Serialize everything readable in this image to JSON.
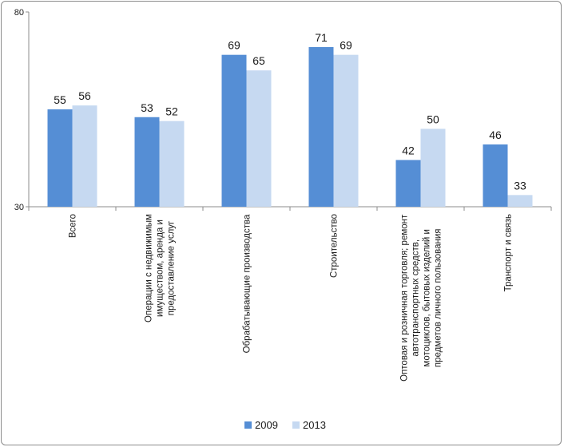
{
  "chart_data": {
    "type": "bar",
    "title": "",
    "xlabel": "",
    "ylabel": "",
    "ylim": [
      30,
      80
    ],
    "yticks": [
      30,
      80
    ],
    "grid": false,
    "legend_position": "bottom",
    "categories": [
      [
        "Всего"
      ],
      [
        "Операции с недвижимым",
        "имуществом, аренда и",
        "предоставление услуг"
      ],
      [
        "Обрабатывающие  производства"
      ],
      [
        "Строительство"
      ],
      [
        "Оптовая и розничная торговля; ремонт",
        "автотранспортных средств,",
        "мотоциклов, бытовых изделий и",
        "предметов личного пользования"
      ],
      [
        "Транспорт и связь"
      ]
    ],
    "series": [
      {
        "name": "2009",
        "color": "#558ed5",
        "values": [
          55,
          53,
          69,
          71,
          42,
          46
        ]
      },
      {
        "name": "2013",
        "color": "#c6d9f1",
        "values": [
          56,
          52,
          65,
          69,
          50,
          33
        ]
      }
    ]
  }
}
